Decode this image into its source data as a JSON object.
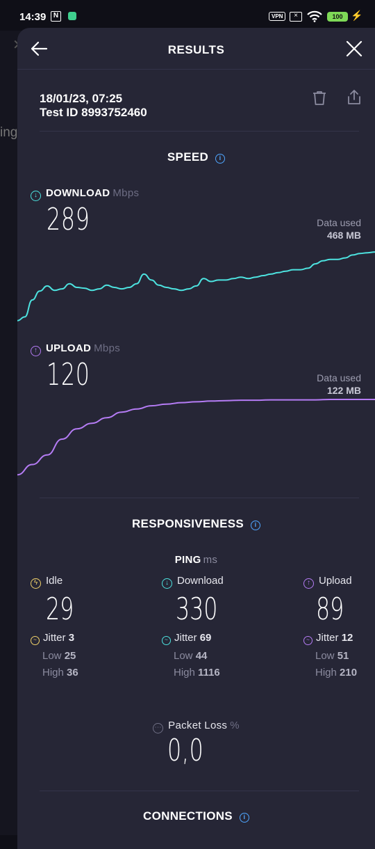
{
  "status_bar": {
    "time": "14:39",
    "nfc_label": "N",
    "vpn_label": "VPN",
    "battery": "100",
    "icons": [
      "nfc-icon",
      "shield-icon",
      "vpn-icon",
      "sim-off-icon",
      "wifi-icon",
      "battery-icon",
      "charging-icon"
    ]
  },
  "background_app": {
    "partial_text": "ing"
  },
  "header": {
    "title": "RESULTS",
    "back_icon": "arrow-left-icon",
    "close_icon": "close-icon"
  },
  "result": {
    "datetime": "18/01/23, 07:25",
    "test_id": "Test ID 8993752460",
    "delete_icon": "trash-icon",
    "share_icon": "share-icon"
  },
  "speed": {
    "title": "SPEED",
    "download": {
      "label": "DOWNLOAD",
      "unit": "Mbps",
      "value": "289",
      "data_used_label": "Data used",
      "data_used_value": "468 MB",
      "color": "#4de3e0"
    },
    "upload": {
      "label": "UPLOAD",
      "unit": "Mbps",
      "value": "120",
      "data_used_label": "Data used",
      "data_used_value": "122 MB",
      "color": "#b57cf5"
    }
  },
  "responsiveness": {
    "title": "RESPONSIVENESS",
    "ping_label": "PING",
    "ping_unit": "ms",
    "idle": {
      "label": "Idle",
      "value": "29",
      "jitter_label": "Jitter",
      "jitter": "3",
      "low_label": "Low",
      "low": "25",
      "high_label": "High",
      "high": "36",
      "color": "#f2d36b"
    },
    "download": {
      "label": "Download",
      "value": "330",
      "jitter_label": "Jitter",
      "jitter": "69",
      "low_label": "Low",
      "low": "44",
      "high_label": "High",
      "high": "1116",
      "color": "#4de3e0"
    },
    "upload": {
      "label": "Upload",
      "value": "89",
      "jitter_label": "Jitter",
      "jitter": "12",
      "low_label": "Low",
      "low": "51",
      "high_label": "High",
      "high": "210",
      "color": "#b57cf5"
    },
    "packet_loss": {
      "label": "Packet Loss",
      "unit": "%",
      "value": "0,0"
    }
  },
  "connections": {
    "title": "CONNECTIONS"
  },
  "chart_data": [
    {
      "type": "line",
      "series": [
        {
          "values": [
            0.05,
            0.1,
            0.33,
            0.45,
            0.52,
            0.46,
            0.48,
            0.55,
            0.5,
            0.49,
            0.46,
            0.48,
            0.53,
            0.5,
            0.48,
            0.5,
            0.55,
            0.68,
            0.6,
            0.53,
            0.5,
            0.48,
            0.46,
            0.48,
            0.52,
            0.62,
            0.58,
            0.6,
            0.6,
            0.62,
            0.64,
            0.62,
            0.64,
            0.66,
            0.68,
            0.7,
            0.72,
            0.74,
            0.74,
            0.76,
            0.82,
            0.86,
            0.88,
            0.88,
            0.9,
            0.94,
            0.96,
            0.97,
            0.98
          ]
        }
      ],
      "color": "#4de3e0"
    },
    {
      "type": "line",
      "series": [
        {
          "values": [
            0.05,
            0.18,
            0.3,
            0.5,
            0.63,
            0.7,
            0.77,
            0.84,
            0.88,
            0.92,
            0.94,
            0.96,
            0.97,
            0.98,
            0.985,
            0.99,
            0.99,
            0.995,
            0.995,
            0.995,
            0.995,
            1,
            1,
            1,
            1
          ]
        }
      ],
      "color": "#b57cf5"
    }
  ]
}
